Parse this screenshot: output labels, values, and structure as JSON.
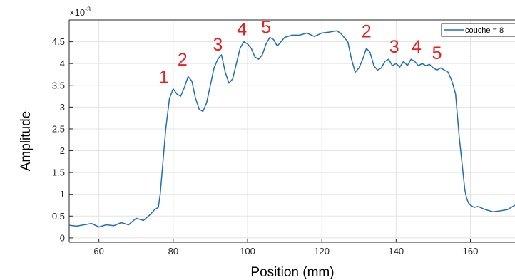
{
  "colors": {
    "series": "#1f6fb5",
    "grid": "#e3e3e3",
    "axis": "#262626",
    "annotation": "#ee1c1c",
    "background": "#ffffff"
  },
  "chart_data": {
    "type": "line",
    "title": "",
    "xlabel": "Position (mm)",
    "ylabel": "Amplitude",
    "y_exponent_label": "×10",
    "y_exponent_power": "-3",
    "xlim": [
      52,
      172
    ],
    "ylim": [
      -0.1,
      5.0
    ],
    "xticks": [
      60,
      80,
      100,
      120,
      140,
      160
    ],
    "yticks": [
      0,
      0.5,
      1,
      1.5,
      2,
      2.5,
      3,
      3.5,
      4,
      4.5
    ],
    "ytick_labels": [
      "0",
      "0.5",
      "1",
      "1.5",
      "2",
      "2.5",
      "3",
      "3.5",
      "4",
      "4.5"
    ],
    "grid": true,
    "legend": {
      "placement": "top-right",
      "entries": [
        "couche = 8"
      ]
    },
    "series": [
      {
        "name": "couche = 8",
        "x": [
          52,
          54,
          56,
          58,
          60,
          62,
          64,
          66,
          68,
          70,
          72,
          74,
          75,
          76,
          76.5,
          77,
          78,
          79,
          80,
          81,
          82,
          83,
          84,
          85,
          86,
          87,
          88,
          89,
          90,
          91,
          92,
          93,
          94,
          95,
          96,
          97,
          98,
          99,
          100,
          101,
          102,
          103,
          104,
          105,
          106,
          107,
          108,
          109,
          110,
          112,
          114,
          116,
          118,
          120,
          122,
          124,
          125,
          126,
          127,
          128,
          129,
          130,
          131,
          132,
          133,
          134,
          135,
          136,
          137,
          138,
          139,
          140,
          141,
          142,
          143,
          144,
          145,
          146,
          147,
          148,
          149,
          150,
          151,
          152,
          153,
          154,
          155,
          156,
          157,
          158,
          158.5,
          159,
          159.5,
          160,
          161,
          162,
          164,
          166,
          168,
          170,
          172
        ],
        "y": [
          0.29,
          0.27,
          0.3,
          0.33,
          0.25,
          0.3,
          0.28,
          0.35,
          0.3,
          0.45,
          0.4,
          0.55,
          0.65,
          0.7,
          1.0,
          1.5,
          2.5,
          3.2,
          3.42,
          3.3,
          3.25,
          3.45,
          3.7,
          3.6,
          3.2,
          2.95,
          2.9,
          3.1,
          3.5,
          3.9,
          4.1,
          4.2,
          3.8,
          3.55,
          3.65,
          4.0,
          4.35,
          4.5,
          4.45,
          4.35,
          4.15,
          4.1,
          4.2,
          4.45,
          4.6,
          4.55,
          4.4,
          4.5,
          4.6,
          4.65,
          4.65,
          4.7,
          4.62,
          4.7,
          4.72,
          4.75,
          4.7,
          4.6,
          4.5,
          4.1,
          3.8,
          3.9,
          4.1,
          4.35,
          4.25,
          3.95,
          3.85,
          3.9,
          4.05,
          4.1,
          3.95,
          4.0,
          3.92,
          4.05,
          3.95,
          4.1,
          4.05,
          3.95,
          4.0,
          3.95,
          3.98,
          3.9,
          3.85,
          3.9,
          3.85,
          3.8,
          3.6,
          3.3,
          2.3,
          1.5,
          1.1,
          0.9,
          0.8,
          0.75,
          0.7,
          0.72,
          0.65,
          0.6,
          0.62,
          0.65,
          0.75
        ]
      }
    ],
    "annotations": [
      {
        "text": "1",
        "x": 77.5,
        "y": 3.55
      },
      {
        "text": "2",
        "x": 82.5,
        "y": 3.95
      },
      {
        "text": "3",
        "x": 92,
        "y": 4.3
      },
      {
        "text": "4",
        "x": 98.5,
        "y": 4.65
      },
      {
        "text": "5",
        "x": 105,
        "y": 4.7
      },
      {
        "text": "2",
        "x": 132,
        "y": 4.6
      },
      {
        "text": "3",
        "x": 139.5,
        "y": 4.25
      },
      {
        "text": "4",
        "x": 145.5,
        "y": 4.25
      },
      {
        "text": "5",
        "x": 151,
        "y": 4.1
      }
    ]
  }
}
